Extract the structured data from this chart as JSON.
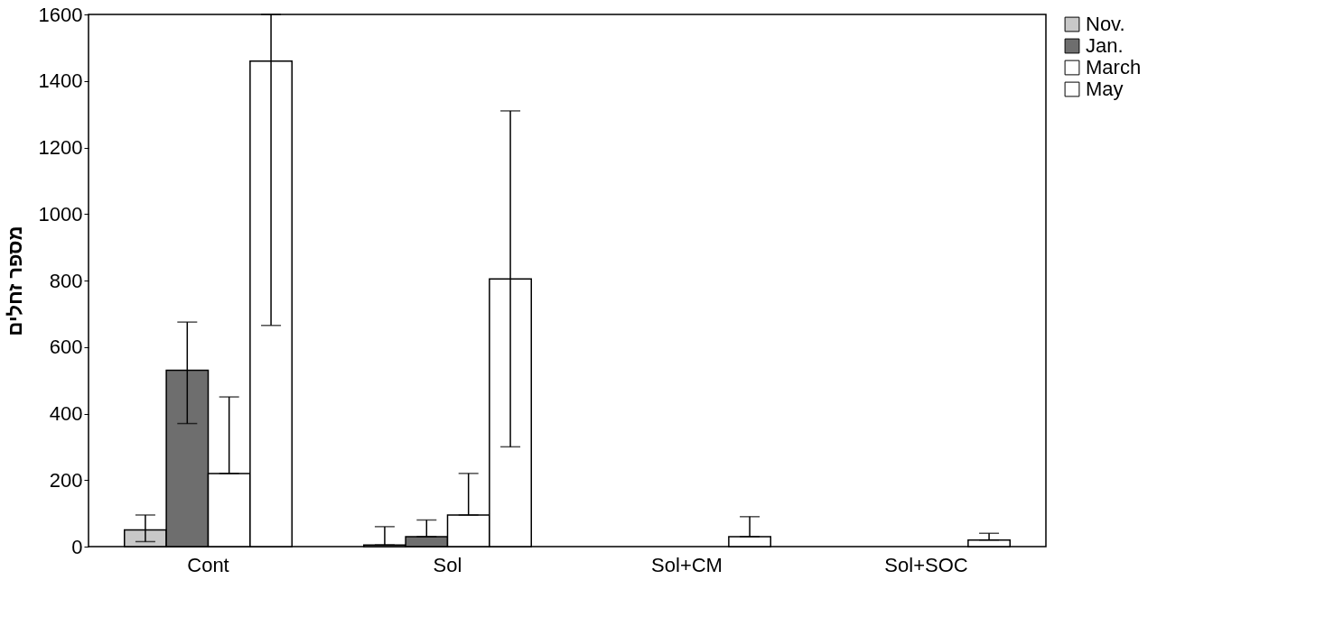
{
  "chart_data": {
    "type": "bar",
    "ylabel": "מספר זחלים",
    "categories": [
      "Cont",
      "Sol",
      "Sol+CM",
      "Sol+SOC"
    ],
    "series": [
      {
        "name": "Nov.",
        "color": "#c8c8c8",
        "values": [
          50,
          5,
          null,
          null
        ],
        "errors": [
          [
            15,
            95
          ],
          [
            5,
            60
          ],
          null,
          null
        ]
      },
      {
        "name": "Jan.",
        "color": "#6e6e6e",
        "values": [
          530,
          30,
          null,
          null
        ],
        "errors": [
          [
            370,
            675
          ],
          [
            30,
            80
          ],
          null,
          null
        ]
      },
      {
        "name": "March",
        "color": "#ffffff",
        "values": [
          220,
          95,
          null,
          null
        ],
        "errors": [
          [
            220,
            450
          ],
          [
            95,
            220
          ],
          null,
          null
        ]
      },
      {
        "name": "May",
        "color": "#ffffff",
        "values": [
          1460,
          805,
          30,
          20
        ],
        "errors": [
          [
            665,
            1600
          ],
          [
            300,
            1310
          ],
          [
            30,
            90
          ],
          [
            20,
            40
          ]
        ]
      }
    ],
    "ylim": [
      0,
      1600
    ],
    "yticks": [
      0,
      200,
      400,
      600,
      800,
      1000,
      1200,
      1400,
      1600
    ],
    "grid": false,
    "legend": "right"
  }
}
